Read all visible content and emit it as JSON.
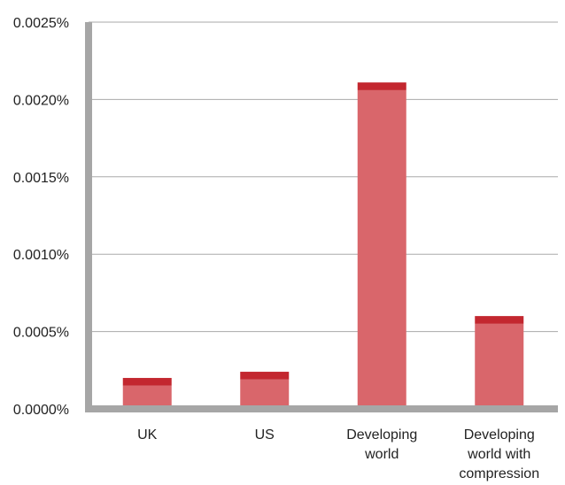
{
  "chart_data": {
    "type": "bar",
    "stacked": true,
    "categories": [
      "UK",
      "US",
      "Developing world",
      "Developing world with compression"
    ],
    "category_labels": [
      [
        "UK"
      ],
      [
        "US"
      ],
      [
        "Developing",
        "world"
      ],
      [
        "Developing",
        "world with",
        "compression"
      ]
    ],
    "series": [
      {
        "values": [
          0.00015,
          0.00019,
          0.00206,
          0.00055
        ],
        "color": "#d9666b"
      },
      {
        "values": [
          5e-05,
          5e-05,
          5e-05,
          5e-05
        ],
        "color": "#c3272f"
      }
    ],
    "ylim": [
      0,
      0.0025
    ],
    "yticks": [
      "0.0000%",
      "0.0005%",
      "0.0010%",
      "0.0015%",
      "0.0020%",
      "0.0025%"
    ],
    "grid": true,
    "axis_color": "#a6a6a6",
    "grid_color": "#aaaaaa",
    "title": "",
    "xlabel": "",
    "ylabel": ""
  }
}
